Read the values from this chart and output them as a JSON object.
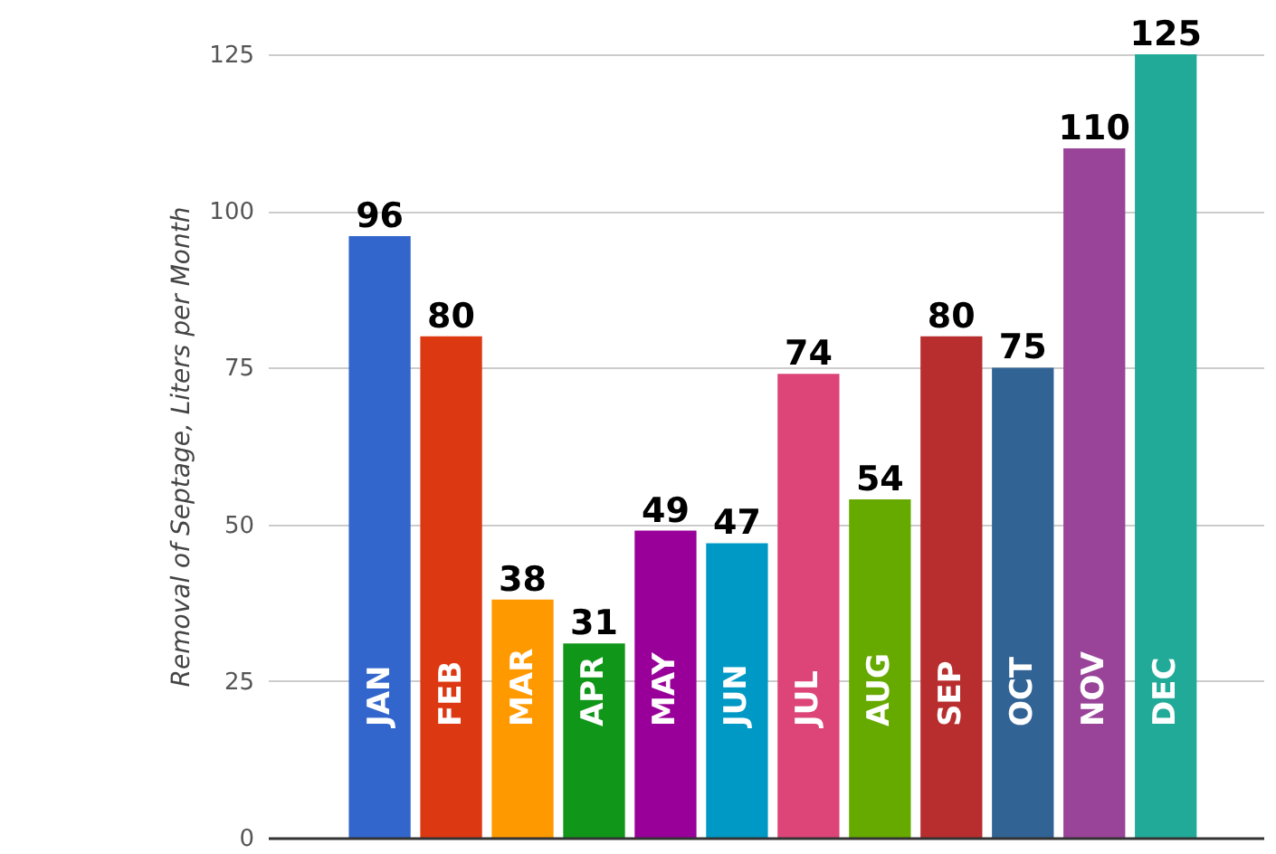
{
  "chart_data": {
    "type": "bar",
    "ylabel": "Removal of Septage, Liters per Month",
    "categories": [
      "JAN",
      "FEB",
      "MAR",
      "APR",
      "MAY",
      "JUN",
      "JUL",
      "AUG",
      "SEP",
      "OCT",
      "NOV",
      "DEC"
    ],
    "values": [
      96,
      80,
      38,
      31,
      49,
      47,
      74,
      54,
      80,
      75,
      110,
      125
    ],
    "colors": [
      "#3366cc",
      "#dc3912",
      "#ff9900",
      "#109618",
      "#990099",
      "#0099c6",
      "#dd4477",
      "#66aa00",
      "#b82e2e",
      "#316395",
      "#994499",
      "#22aa99"
    ],
    "ylim": [
      0,
      125
    ],
    "yticks": [
      0,
      25,
      50,
      75,
      100,
      125
    ],
    "grid": "y",
    "data_labels": true
  }
}
